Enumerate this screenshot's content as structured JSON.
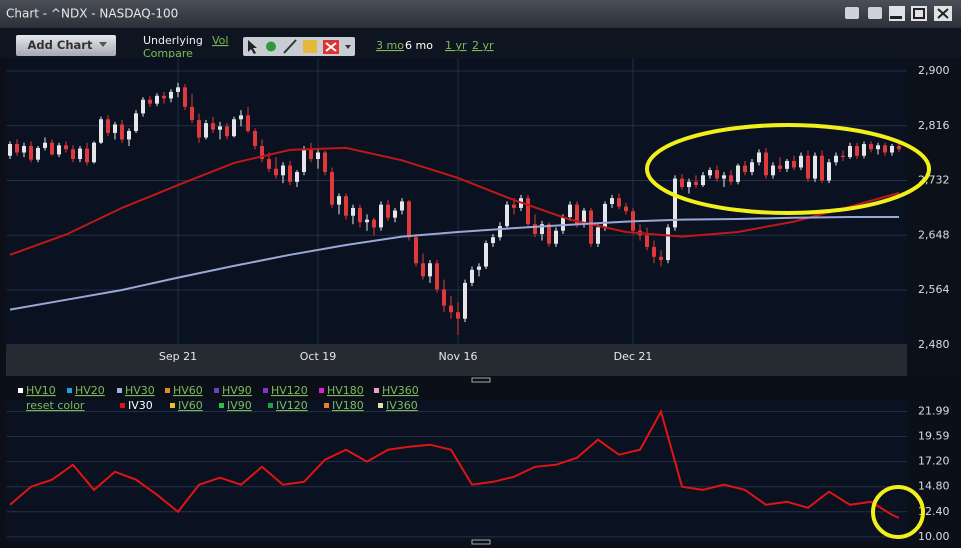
{
  "ui": {
    "window_title": "Chart - ^NDX - NASDAQ-100",
    "add_chart": "Add Chart",
    "underlying": "Underlying",
    "vol": "Vol",
    "compare": "Compare",
    "ranges": [
      "3 mo",
      "6 mo",
      "1 yr",
      "2 yr"
    ],
    "vol_toggles": [
      {
        "label": "HV10",
        "color": "#ffffff"
      },
      {
        "label": "HV20",
        "color": "#1fa3e0"
      },
      {
        "label": "HV30",
        "color": "#9fb4d6"
      },
      {
        "label": "HV60",
        "color": "#e08a2a"
      },
      {
        "label": "HV90",
        "color": "#6a3fc0"
      },
      {
        "label": "HV120",
        "color": "#8a2fd0"
      },
      {
        "label": "HV180",
        "color": "#e020d0"
      },
      {
        "label": "HV360",
        "color": "#f0a0c0"
      }
    ],
    "reset_color": "reset color",
    "iv_toggles": [
      {
        "label": "IV60",
        "color": "#f0c020"
      },
      {
        "label": "IV90",
        "color": "#30c040"
      },
      {
        "label": "IV120",
        "color": "#20a040"
      },
      {
        "label": "IV180",
        "color": "#f08020"
      },
      {
        "label": "IV360",
        "color": "#e8e0a0"
      }
    ]
  },
  "chart_data": [
    {
      "type": "candlestick",
      "grid": true,
      "up_color": "#e4e6ea",
      "down_color": "#e0393b",
      "categories": [
        null,
        null,
        null,
        null,
        null,
        null,
        null,
        null,
        null,
        null,
        null,
        null,
        null,
        null,
        null,
        null,
        null,
        null,
        null,
        null,
        null,
        null,
        null,
        null,
        "Sep 21",
        null,
        null,
        null,
        null,
        null,
        null,
        null,
        null,
        null,
        null,
        null,
        null,
        null,
        null,
        null,
        null,
        null,
        null,
        null,
        "Oct 19",
        null,
        null,
        null,
        null,
        null,
        null,
        null,
        null,
        null,
        null,
        null,
        null,
        null,
        null,
        null,
        null,
        null,
        null,
        null,
        "Nov 16",
        null,
        null,
        null,
        null,
        null,
        null,
        null,
        null,
        null,
        null,
        null,
        null,
        null,
        null,
        null,
        null,
        null,
        null,
        null,
        null,
        null,
        null,
        null,
        null,
        "Dec 21",
        null,
        null,
        null,
        null,
        null,
        null,
        null,
        null,
        null,
        null,
        null,
        null,
        null,
        null,
        null,
        null,
        null,
        null,
        null,
        null,
        null,
        null,
        null,
        null,
        null,
        null,
        null,
        null,
        null,
        null,
        null,
        null,
        null,
        null,
        null,
        null,
        null,
        null
      ],
      "ohlc": [
        [
          2770,
          2792,
          2765,
          2788
        ],
        [
          2788,
          2795,
          2770,
          2775
        ],
        [
          2775,
          2790,
          2768,
          2785
        ],
        [
          2785,
          2792,
          2760,
          2764
        ],
        [
          2764,
          2785,
          2760,
          2782
        ],
        [
          2782,
          2798,
          2778,
          2790
        ],
        [
          2790,
          2795,
          2770,
          2772
        ],
        [
          2772,
          2790,
          2768,
          2786
        ],
        [
          2786,
          2792,
          2775,
          2780
        ],
        [
          2780,
          2786,
          2760,
          2765
        ],
        [
          2765,
          2785,
          2760,
          2781
        ],
        [
          2781,
          2790,
          2755,
          2760
        ],
        [
          2760,
          2792,
          2758,
          2790
        ],
        [
          2790,
          2830,
          2788,
          2826
        ],
        [
          2826,
          2832,
          2800,
          2805
        ],
        [
          2805,
          2822,
          2795,
          2818
        ],
        [
          2818,
          2825,
          2790,
          2795
        ],
        [
          2795,
          2812,
          2785,
          2808
        ],
        [
          2808,
          2840,
          2805,
          2835
        ],
        [
          2835,
          2860,
          2830,
          2856
        ],
        [
          2856,
          2862,
          2845,
          2850
        ],
        [
          2850,
          2866,
          2846,
          2862
        ],
        [
          2862,
          2868,
          2850,
          2858
        ],
        [
          2858,
          2872,
          2852,
          2868
        ],
        [
          2868,
          2882,
          2860,
          2875
        ],
        [
          2875,
          2880,
          2840,
          2845
        ],
        [
          2845,
          2865,
          2820,
          2825
        ],
        [
          2825,
          2835,
          2790,
          2798
        ],
        [
          2798,
          2825,
          2795,
          2820
        ],
        [
          2820,
          2830,
          2805,
          2810
        ],
        [
          2810,
          2822,
          2795,
          2815
        ],
        [
          2815,
          2820,
          2795,
          2800
        ],
        [
          2800,
          2830,
          2798,
          2826
        ],
        [
          2826,
          2840,
          2815,
          2832
        ],
        [
          2832,
          2845,
          2805,
          2808
        ],
        [
          2808,
          2812,
          2780,
          2785
        ],
        [
          2785,
          2795,
          2760,
          2765
        ],
        [
          2765,
          2775,
          2745,
          2750
        ],
        [
          2750,
          2768,
          2735,
          2740
        ],
        [
          2740,
          2760,
          2728,
          2755
        ],
        [
          2755,
          2762,
          2725,
          2730
        ],
        [
          2730,
          2748,
          2722,
          2745
        ],
        [
          2745,
          2785,
          2740,
          2780
        ],
        [
          2780,
          2790,
          2760,
          2765
        ],
        [
          2765,
          2780,
          2750,
          2775
        ],
        [
          2775,
          2778,
          2740,
          2745
        ],
        [
          2745,
          2752,
          2690,
          2695
        ],
        [
          2695,
          2712,
          2680,
          2708
        ],
        [
          2708,
          2712,
          2672,
          2678
        ],
        [
          2678,
          2695,
          2665,
          2690
        ],
        [
          2690,
          2695,
          2660,
          2668
        ],
        [
          2668,
          2680,
          2655,
          2672
        ],
        [
          2672,
          2675,
          2648,
          2660
        ],
        [
          2660,
          2700,
          2655,
          2695
        ],
        [
          2695,
          2702,
          2670,
          2675
        ],
        [
          2675,
          2690,
          2668,
          2686
        ],
        [
          2686,
          2705,
          2680,
          2700
        ],
        [
          2700,
          2702,
          2640,
          2645
        ],
        [
          2645,
          2650,
          2600,
          2605
        ],
        [
          2605,
          2620,
          2580,
          2585
        ],
        [
          2585,
          2610,
          2575,
          2605
        ],
        [
          2605,
          2610,
          2560,
          2565
        ],
        [
          2565,
          2580,
          2530,
          2540
        ],
        [
          2540,
          2555,
          2520,
          2530
        ],
        [
          2530,
          2545,
          2495,
          2520
        ],
        [
          2520,
          2580,
          2515,
          2575
        ],
        [
          2575,
          2600,
          2570,
          2595
        ],
        [
          2595,
          2605,
          2585,
          2600
        ],
        [
          2600,
          2640,
          2596,
          2636
        ],
        [
          2636,
          2650,
          2630,
          2645
        ],
        [
          2645,
          2668,
          2640,
          2662
        ],
        [
          2662,
          2700,
          2660,
          2695
        ],
        [
          2695,
          2705,
          2680,
          2690
        ],
        [
          2690,
          2710,
          2685,
          2705
        ],
        [
          2705,
          2710,
          2660,
          2665
        ],
        [
          2665,
          2680,
          2645,
          2650
        ],
        [
          2650,
          2670,
          2640,
          2665
        ],
        [
          2665,
          2668,
          2630,
          2635
        ],
        [
          2635,
          2660,
          2630,
          2655
        ],
        [
          2655,
          2680,
          2650,
          2676
        ],
        [
          2676,
          2700,
          2670,
          2695
        ],
        [
          2695,
          2700,
          2660,
          2665
        ],
        [
          2665,
          2690,
          2660,
          2686
        ],
        [
          2686,
          2690,
          2630,
          2635
        ],
        [
          2635,
          2665,
          2630,
          2660
        ],
        [
          2660,
          2700,
          2655,
          2696
        ],
        [
          2696,
          2710,
          2690,
          2705
        ],
        [
          2705,
          2712,
          2688,
          2692
        ],
        [
          2692,
          2698,
          2680,
          2685
        ],
        [
          2685,
          2690,
          2650,
          2655
        ],
        [
          2655,
          2665,
          2640,
          2648
        ],
        [
          2648,
          2660,
          2625,
          2630
        ],
        [
          2630,
          2640,
          2605,
          2615
        ],
        [
          2615,
          2625,
          2600,
          2610
        ],
        [
          2610,
          2665,
          2605,
          2660
        ],
        [
          2660,
          2740,
          2655,
          2735
        ],
        [
          2735,
          2742,
          2718,
          2722
        ],
        [
          2722,
          2735,
          2712,
          2730
        ],
        [
          2730,
          2740,
          2720,
          2725
        ],
        [
          2725,
          2745,
          2722,
          2740
        ],
        [
          2740,
          2752,
          2735,
          2748
        ],
        [
          2748,
          2755,
          2730,
          2735
        ],
        [
          2735,
          2745,
          2722,
          2740
        ],
        [
          2740,
          2748,
          2725,
          2730
        ],
        [
          2730,
          2758,
          2726,
          2755
        ],
        [
          2755,
          2762,
          2740,
          2745
        ],
        [
          2745,
          2765,
          2740,
          2760
        ],
        [
          2760,
          2780,
          2755,
          2775
        ],
        [
          2775,
          2782,
          2735,
          2740
        ],
        [
          2740,
          2760,
          2735,
          2755
        ],
        [
          2755,
          2768,
          2745,
          2750
        ],
        [
          2750,
          2765,
          2745,
          2762
        ],
        [
          2762,
          2770,
          2748,
          2752
        ],
        [
          2752,
          2775,
          2748,
          2770
        ],
        [
          2770,
          2778,
          2730,
          2735
        ],
        [
          2735,
          2775,
          2730,
          2770
        ],
        [
          2770,
          2778,
          2728,
          2732
        ],
        [
          2732,
          2765,
          2728,
          2760
        ],
        [
          2760,
          2775,
          2755,
          2770
        ],
        [
          2770,
          2778,
          2762,
          2768
        ],
        [
          2768,
          2790,
          2765,
          2785
        ],
        [
          2785,
          2790,
          2765,
          2770
        ],
        [
          2770,
          2792,
          2766,
          2788
        ],
        [
          2788,
          2792,
          2775,
          2780
        ],
        [
          2780,
          2790,
          2772,
          2786
        ],
        [
          2786,
          2790,
          2770,
          2775
        ],
        [
          2775,
          2788,
          2770,
          2785
        ],
        [
          2785,
          2790,
          2776,
          2780
        ]
      ],
      "overlays": [
        {
          "color": "#c01818",
          "x": [
            0,
            8,
            16,
            24,
            32,
            40,
            48,
            56,
            64,
            72,
            80,
            88,
            96,
            104,
            112,
            120,
            127
          ],
          "values": [
            2618,
            2649,
            2690,
            2725,
            2759,
            2779,
            2782,
            2763,
            2736,
            2702,
            2672,
            2653,
            2646,
            2653,
            2669,
            2692,
            2713
          ]
        },
        {
          "color": "#9aa8d8",
          "x": [
            0,
            8,
            16,
            24,
            32,
            40,
            48,
            56,
            64,
            72,
            80,
            88,
            96,
            104,
            112,
            120,
            127
          ],
          "values": [
            2534,
            2549,
            2564,
            2583,
            2601,
            2618,
            2633,
            2646,
            2653,
            2659,
            2664,
            2669,
            2672,
            2673,
            2675,
            2676,
            2676
          ]
        }
      ],
      "ylim": [
        2429,
        2920
      ],
      "yticks": [
        {
          "value": 2480,
          "label": "2,480"
        },
        {
          "value": 2564,
          "label": "2,564"
        },
        {
          "value": 2648,
          "label": "2,648"
        },
        {
          "value": 2732,
          "label": "2,732"
        },
        {
          "value": 2816,
          "label": "2,816"
        },
        {
          "value": 2900,
          "label": "2,900"
        }
      ]
    },
    {
      "type": "line",
      "grid": true,
      "xlim": [
        -0.5,
        127.5
      ],
      "ylim": [
        9.7,
        23.1
      ],
      "yticks": [
        {
          "value": 10,
          "label": "10.00"
        },
        {
          "value": 12.4,
          "label": "12.40"
        },
        {
          "value": 14.8,
          "label": "14.80"
        },
        {
          "value": 17.2,
          "label": "17.20"
        },
        19.59,
        21.99
      ],
      "series": [
        {
          "name": "IV30",
          "color": "#e01414",
          "x": [
            0,
            3,
            6,
            9,
            12,
            15,
            18,
            21,
            24,
            27,
            30,
            33,
            36,
            39,
            42,
            45,
            48,
            51,
            54,
            57,
            60,
            63,
            66,
            69,
            72,
            75,
            78,
            81,
            84,
            87,
            90,
            93,
            96,
            99,
            102,
            105,
            108,
            111,
            114,
            117,
            120,
            123,
            126,
            127
          ],
          "values": [
            13.07,
            14.8,
            15.47,
            16.9,
            14.5,
            16.23,
            15.47,
            14.03,
            12.4,
            14.99,
            15.66,
            14.99,
            16.71,
            14.99,
            15.27,
            17.39,
            18.34,
            17.2,
            18.34,
            18.63,
            18.82,
            18.34,
            14.99,
            15.27,
            15.75,
            16.71,
            16.9,
            17.58,
            19.3,
            17.86,
            18.34,
            21.99,
            14.8,
            14.5,
            14.99,
            14.5,
            13.07,
            13.36,
            12.78,
            14.32,
            13.07,
            13.36,
            12.11,
            11.82
          ]
        }
      ]
    }
  ]
}
